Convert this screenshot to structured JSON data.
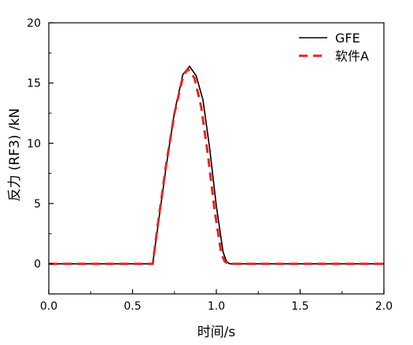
{
  "chart_data": {
    "type": "line",
    "title": "",
    "xlabel": "时间/s",
    "ylabel": "反力 (RF3) /kN",
    "xlim": [
      0.0,
      2.0
    ],
    "ylim": [
      -2.5,
      20
    ],
    "xticks": [
      0.0,
      0.5,
      1.0,
      1.5,
      2.0
    ],
    "xtick_labels": [
      "0.0",
      "0.5",
      "1.0",
      "1.5",
      "2.0"
    ],
    "yticks": [
      0,
      5,
      10,
      15,
      20
    ],
    "ytick_labels": [
      "0",
      "5",
      "10",
      "15",
      "20"
    ],
    "grid": false,
    "legend_position": "top-right",
    "series": [
      {
        "name": "GFE",
        "color": "#000000",
        "style": "solid",
        "x": [
          0.0,
          0.62,
          0.65,
          0.7,
          0.75,
          0.8,
          0.84,
          0.88,
          0.92,
          0.96,
          1.0,
          1.04,
          1.06,
          1.08,
          1.1,
          2.0
        ],
        "y": [
          0.0,
          0.0,
          3.0,
          8.0,
          12.6,
          15.7,
          16.4,
          15.6,
          13.6,
          9.6,
          4.8,
          1.0,
          0.2,
          0.0,
          0.0,
          0.0
        ]
      },
      {
        "name": "软件A",
        "color": "#e8231f",
        "style": "dashed",
        "x": [
          0.0,
          0.62,
          0.65,
          0.7,
          0.75,
          0.8,
          0.83,
          0.87,
          0.91,
          0.95,
          0.99,
          1.03,
          1.05,
          1.07,
          1.09,
          2.0
        ],
        "y": [
          0.0,
          0.0,
          3.2,
          8.2,
          12.5,
          15.5,
          16.2,
          15.4,
          13.0,
          9.0,
          4.4,
          0.8,
          0.2,
          0.0,
          0.0,
          0.0
        ]
      }
    ]
  }
}
